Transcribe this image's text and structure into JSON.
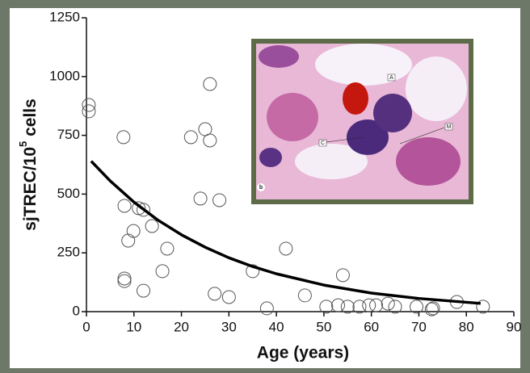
{
  "chart_data": {
    "type": "scatter",
    "xlabel": "Age (years)",
    "ylabel": {
      "main": "sjTREC/10",
      "sup": "5",
      "rest": " cells"
    },
    "xlim": [
      0,
      90
    ],
    "xticks": [
      0,
      10,
      20,
      30,
      40,
      50,
      60,
      70,
      80,
      90
    ],
    "ylim": [
      0,
      1250
    ],
    "yticks": [
      0,
      250,
      500,
      750,
      1000,
      1250
    ],
    "inset_labels": [
      "A",
      "M",
      "C",
      "b"
    ],
    "series": [
      {
        "type": "scatter",
        "color": "#555555",
        "x": [
          0.5,
          0.5,
          7.8,
          8,
          11,
          12,
          9.9,
          8.8,
          13.8,
          17,
          16,
          8,
          8,
          12,
          22,
          25,
          26,
          26,
          24,
          28,
          42,
          35,
          27,
          30,
          38,
          46,
          54,
          50.5,
          53,
          55,
          57.5,
          59.5,
          61,
          63.5,
          65,
          69.5,
          73,
          72.7,
          78,
          83.5
        ],
        "values": [
          879,
          852,
          742,
          450,
          440,
          433,
          343,
          302,
          364,
          268,
          172,
          141,
          130,
          89,
          742,
          776,
          968,
          728,
          481,
          474,
          268,
          172,
          76,
          62,
          14,
          69,
          155,
          21,
          27,
          21,
          21,
          27,
          27,
          34,
          21,
          21,
          14,
          10,
          41,
          21
        ]
      },
      {
        "type": "line",
        "color": "#000000",
        "x": [
          1,
          5,
          10,
          15,
          20,
          25,
          30,
          35,
          40,
          50,
          60,
          70,
          83
        ],
        "values": [
          640,
          556,
          466,
          390,
          327,
          274,
          229,
          192,
          161,
          113,
          79,
          56,
          35
        ]
      }
    ]
  }
}
